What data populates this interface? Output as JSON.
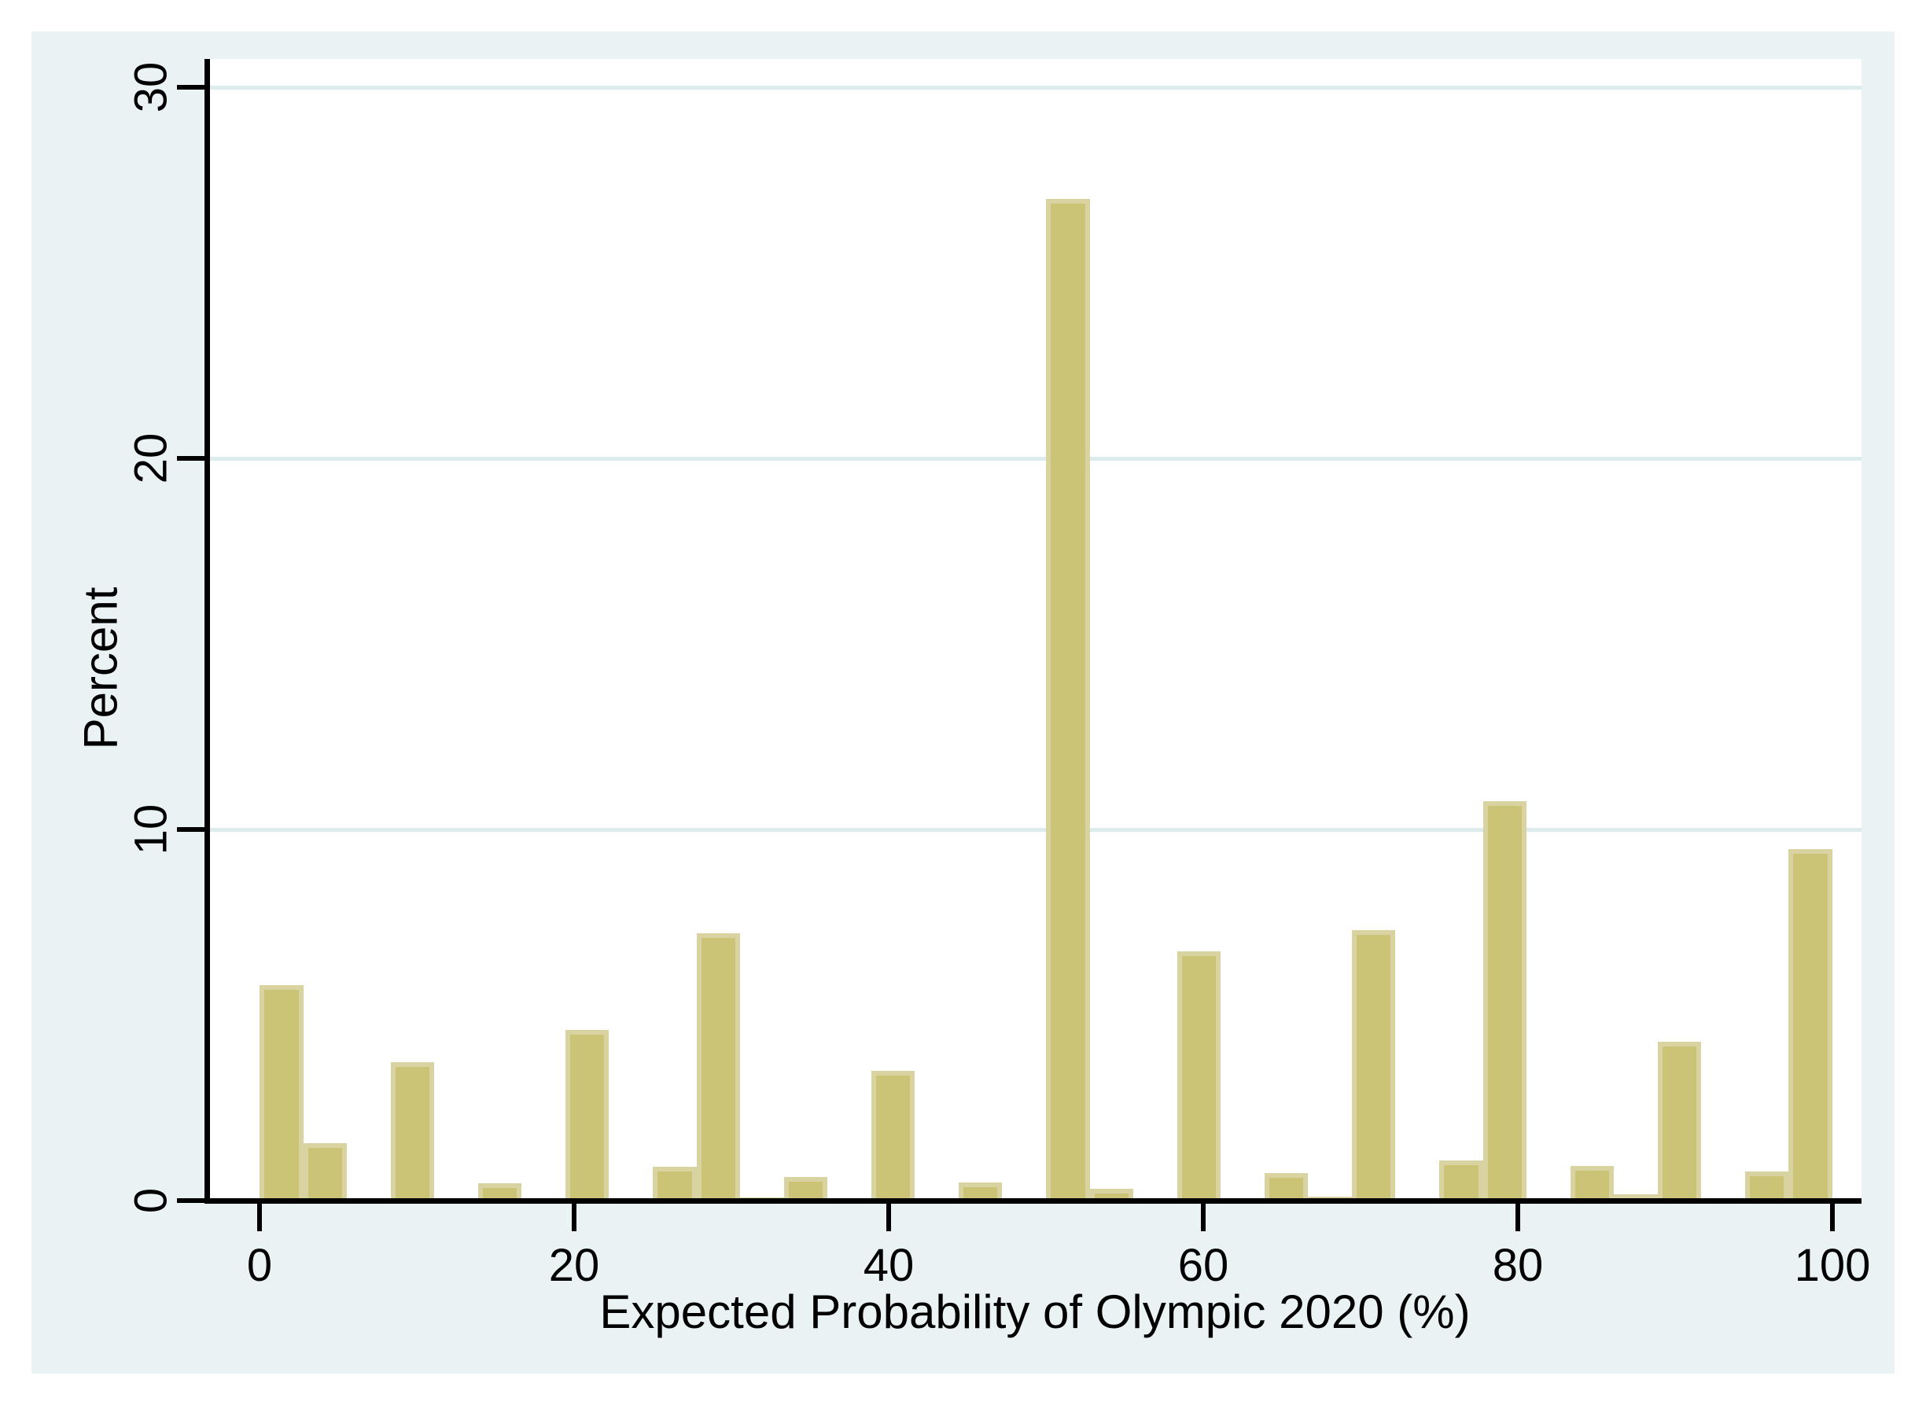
{
  "figure": {
    "background_color": "#eaf2f3",
    "plot_background_color": "#ffffff",
    "bar_fill_color": "#cbc476",
    "bar_border_color": "#d9d3a2",
    "gridline_color": "#dcebec",
    "axis_color": "#000000"
  },
  "chart_data": {
    "type": "bar",
    "subtype": "histogram",
    "title": "",
    "xlabel": "Expected Probability of Olympic 2020 (%)",
    "ylabel": "Percent",
    "x_ticks": [
      0,
      20,
      40,
      60,
      80,
      100
    ],
    "x_tick_labels": [
      "0",
      "20",
      "40",
      "60",
      "80",
      "100"
    ],
    "y_ticks": [
      0,
      10,
      20,
      30
    ],
    "y_tick_labels": [
      "0",
      "10",
      "20",
      "30"
    ],
    "y_gridlines_at": [
      10,
      20,
      30
    ],
    "grid": "horizontal-only",
    "legend_position": "none",
    "xlim": [
      -3.3,
      101.9
    ],
    "ylim": [
      0,
      30.8
    ],
    "bin_width": 2.778,
    "bins": [
      {
        "start": 0.0,
        "percent": 5.81
      },
      {
        "start": 2.78,
        "percent": 1.55
      },
      {
        "start": 8.33,
        "percent": 3.73
      },
      {
        "start": 11.11,
        "percent": 0.06
      },
      {
        "start": 13.89,
        "percent": 0.47
      },
      {
        "start": 19.44,
        "percent": 4.6
      },
      {
        "start": 25.0,
        "percent": 0.91
      },
      {
        "start": 27.78,
        "percent": 7.2
      },
      {
        "start": 30.56,
        "percent": 0.08
      },
      {
        "start": 33.33,
        "percent": 0.64
      },
      {
        "start": 36.11,
        "percent": 0.04
      },
      {
        "start": 38.89,
        "percent": 3.5
      },
      {
        "start": 44.44,
        "percent": 0.49
      },
      {
        "start": 50.0,
        "percent": 27.0
      },
      {
        "start": 52.78,
        "percent": 0.32
      },
      {
        "start": 58.33,
        "percent": 6.72
      },
      {
        "start": 63.89,
        "percent": 0.74
      },
      {
        "start": 66.67,
        "percent": 0.1
      },
      {
        "start": 69.44,
        "percent": 7.29
      },
      {
        "start": 75.0,
        "percent": 1.08
      },
      {
        "start": 77.78,
        "percent": 10.76
      },
      {
        "start": 83.33,
        "percent": 0.93
      },
      {
        "start": 86.11,
        "percent": 0.17
      },
      {
        "start": 88.89,
        "percent": 4.28
      },
      {
        "start": 94.44,
        "percent": 0.78
      },
      {
        "start": 97.22,
        "percent": 9.47
      }
    ]
  }
}
